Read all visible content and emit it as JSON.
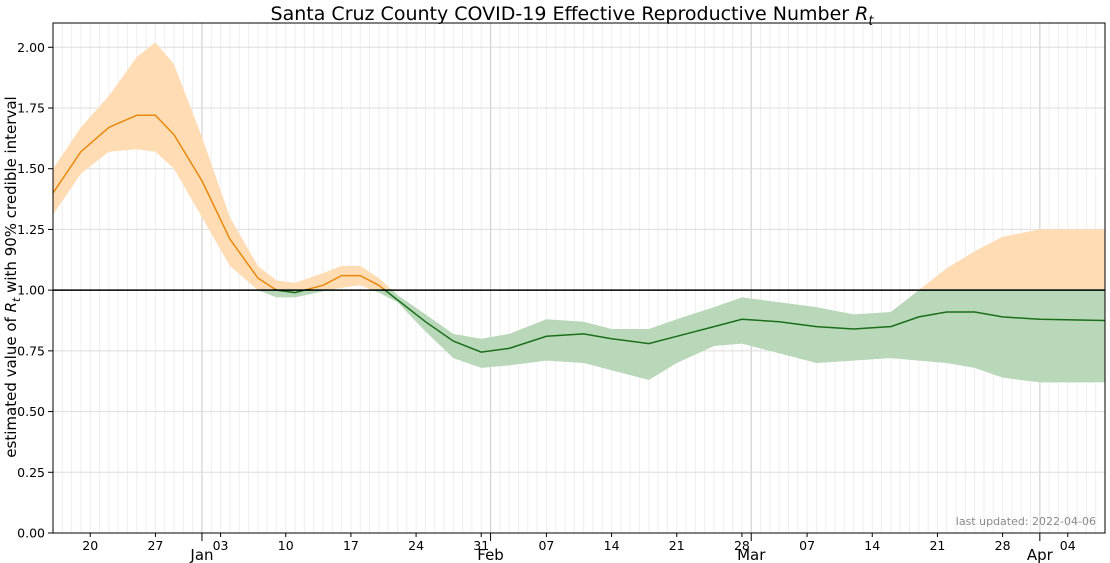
{
  "chart_data": {
    "type": "line",
    "title": "Santa Cruz County COVID-19 Effective Reproductive Number",
    "title_symbol": "R",
    "title_symbol_sub": "t",
    "ylabel_prefix": "estimated value of ",
    "ylabel_symbol": "R",
    "ylabel_symbol_sub": "t",
    "ylabel_suffix": " with 90% credible interval",
    "xlabel": "",
    "ylim": [
      0,
      2.1
    ],
    "xlim": [
      "2021-12-16",
      "2022-04-08"
    ],
    "y_ticks": [
      "0.00",
      "0.25",
      "0.50",
      "0.75",
      "1.00",
      "1.25",
      "1.50",
      "1.75",
      "2.00"
    ],
    "x_day_ticks": [
      {
        "date": "2021-12-20",
        "label": "20"
      },
      {
        "date": "2021-12-27",
        "label": "27"
      },
      {
        "date": "2022-01-03",
        "label": "03"
      },
      {
        "date": "2022-01-10",
        "label": "10"
      },
      {
        "date": "2022-01-17",
        "label": "17"
      },
      {
        "date": "2022-01-24",
        "label": "24"
      },
      {
        "date": "2022-01-31",
        "label": "31"
      },
      {
        "date": "2022-02-07",
        "label": "07"
      },
      {
        "date": "2022-02-14",
        "label": "14"
      },
      {
        "date": "2022-02-21",
        "label": "21"
      },
      {
        "date": "2022-02-28",
        "label": "28"
      },
      {
        "date": "2022-03-07",
        "label": "07"
      },
      {
        "date": "2022-03-14",
        "label": "14"
      },
      {
        "date": "2022-03-21",
        "label": "21"
      },
      {
        "date": "2022-03-28",
        "label": "28"
      },
      {
        "date": "2022-04-04",
        "label": "04"
      }
    ],
    "x_month_ticks": [
      {
        "date": "2022-01-01",
        "label": "Jan"
      },
      {
        "date": "2022-02-01",
        "label": "Feb"
      },
      {
        "date": "2022-03-01",
        "label": "Mar"
      },
      {
        "date": "2022-04-01",
        "label": "Apr"
      }
    ],
    "threshold": 1.0,
    "grid": true,
    "colors": {
      "above": "#e8890c",
      "above_band": "#ffdcb4",
      "below": "#1a6e1a",
      "below_band": "#b9d8b9",
      "threshold": "#000000",
      "grid": "#dddddd"
    },
    "series": [
      {
        "x": [
          "2021-12-16",
          "2021-12-19",
          "2021-12-22",
          "2021-12-25",
          "2021-12-27",
          "2021-12-29",
          "2022-01-01",
          "2022-01-04",
          "2022-01-07",
          "2022-01-09",
          "2022-01-11",
          "2022-01-14",
          "2022-01-16",
          "2022-01-18",
          "2022-01-20",
          "2022-01-22",
          "2022-01-25",
          "2022-01-28",
          "2022-01-31",
          "2022-02-03",
          "2022-02-07",
          "2022-02-11",
          "2022-02-14",
          "2022-02-18",
          "2022-02-21",
          "2022-02-25",
          "2022-02-28",
          "2022-03-04",
          "2022-03-08",
          "2022-03-12",
          "2022-03-16",
          "2022-03-19",
          "2022-03-22",
          "2022-03-25",
          "2022-03-28",
          "2022-04-01",
          "2022-04-08"
        ],
        "median": [
          1.4,
          1.57,
          1.67,
          1.72,
          1.72,
          1.64,
          1.45,
          1.21,
          1.05,
          1.0,
          0.99,
          1.02,
          1.06,
          1.06,
          1.02,
          0.96,
          0.87,
          0.79,
          0.745,
          0.76,
          0.81,
          0.82,
          0.8,
          0.78,
          0.81,
          0.85,
          0.88,
          0.87,
          0.85,
          0.84,
          0.85,
          0.89,
          0.91,
          0.91,
          0.89,
          0.88,
          0.875
        ],
        "lower": [
          1.31,
          1.48,
          1.57,
          1.58,
          1.57,
          1.5,
          1.3,
          1.1,
          1.0,
          0.97,
          0.97,
          0.995,
          1.01,
          1.02,
          0.99,
          0.95,
          0.83,
          0.72,
          0.68,
          0.69,
          0.71,
          0.7,
          0.67,
          0.63,
          0.7,
          0.77,
          0.78,
          0.74,
          0.7,
          0.71,
          0.72,
          0.71,
          0.7,
          0.68,
          0.64,
          0.62,
          0.62
        ],
        "upper": [
          1.5,
          1.67,
          1.8,
          1.96,
          2.02,
          1.93,
          1.63,
          1.3,
          1.1,
          1.04,
          1.03,
          1.07,
          1.1,
          1.1,
          1.05,
          0.98,
          0.9,
          0.82,
          0.8,
          0.82,
          0.88,
          0.87,
          0.84,
          0.84,
          0.88,
          0.93,
          0.97,
          0.95,
          0.93,
          0.9,
          0.91,
          1.0,
          1.09,
          1.16,
          1.22,
          1.25,
          1.25
        ]
      }
    ]
  },
  "footer": {
    "updated": "last updated: 2022-04-06"
  }
}
